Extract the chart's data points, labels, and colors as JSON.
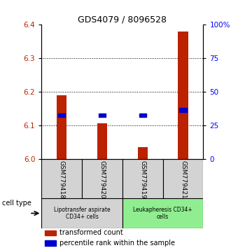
{
  "title": "GDS4079 / 8096528",
  "samples": [
    "GSM779418",
    "GSM779420",
    "GSM779419",
    "GSM779421"
  ],
  "red_values": [
    6.19,
    6.105,
    6.035,
    6.38
  ],
  "blue_values": [
    6.13,
    6.13,
    6.13,
    6.145
  ],
  "ylim_left": [
    6.0,
    6.4
  ],
  "ylim_right": [
    0,
    100
  ],
  "yticks_left": [
    6.0,
    6.1,
    6.2,
    6.3,
    6.4
  ],
  "yticks_right": [
    0,
    25,
    50,
    75,
    100
  ],
  "ytick_labels_right": [
    "0",
    "25",
    "50",
    "75",
    "100%"
  ],
  "grid_lines": [
    6.1,
    6.2,
    6.3
  ],
  "groups": [
    {
      "label": "Lipotransfer aspirate\nCD34+ cells",
      "samples": [
        0,
        1
      ],
      "color": "#90ee90",
      "facecolor": "#d3d3d3"
    },
    {
      "label": "Leukapheresis CD34+\ncells",
      "samples": [
        2,
        3
      ],
      "color": "#90ee90",
      "facecolor": "#90ee90"
    }
  ],
  "cell_type_label": "cell type",
  "legend_red": "transformed count",
  "legend_blue": "percentile rank within the sample",
  "red_color": "#bb2200",
  "blue_color": "#0000cc",
  "base_value": 6.0,
  "bar_width": 0.25
}
